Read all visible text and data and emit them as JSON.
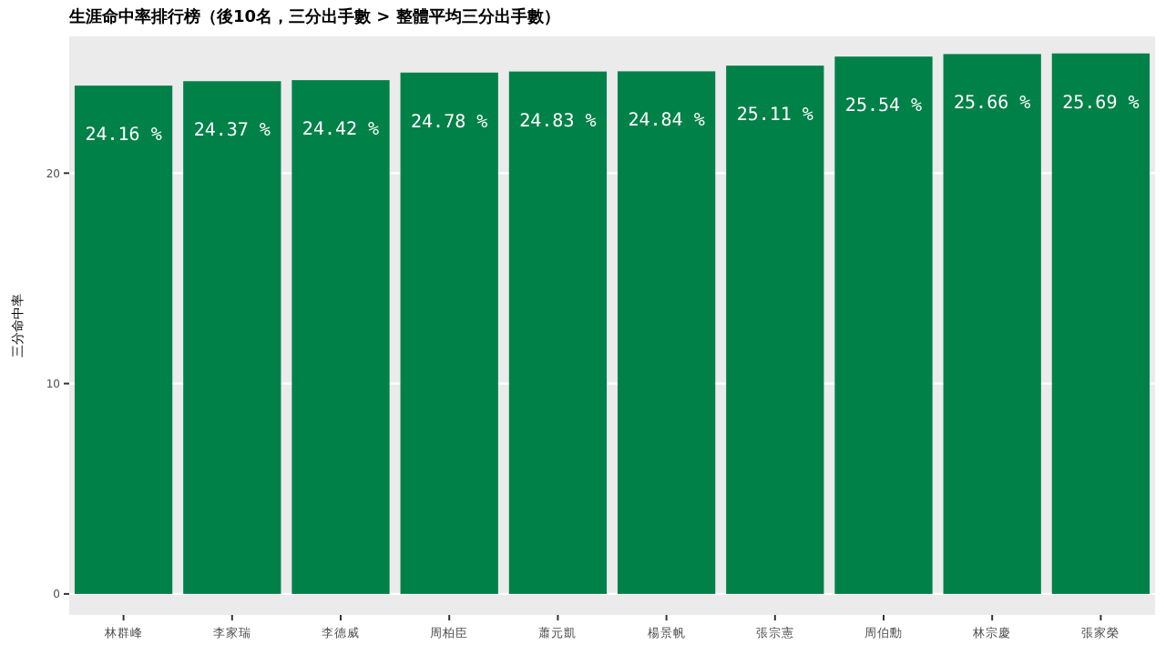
{
  "chart_data": {
    "type": "bar",
    "title": "生涯命中率排行榜（後10名，三分出手數 > 整體平均三分出手數）",
    "ylabel": "三分命中率",
    "categories": [
      "林群峰",
      "李家瑞",
      "李德威",
      "周柏臣",
      "蕭元凱",
      "楊景帆",
      "張宗憲",
      "周伯勳",
      "林宗慶",
      "張家榮"
    ],
    "values": [
      24.16,
      24.37,
      24.42,
      24.78,
      24.83,
      24.84,
      25.11,
      25.54,
      25.66,
      25.69
    ],
    "value_labels": [
      "24.16 %",
      "24.37 %",
      "24.42 %",
      "24.78 %",
      "24.83 %",
      "24.84 %",
      "25.11 %",
      "25.54 %",
      "25.66 %",
      "25.69 %"
    ],
    "color": "#008148",
    "ylim": [
      -1,
      26.5
    ],
    "yticks": [
      0,
      10,
      20
    ],
    "grid": "y"
  }
}
